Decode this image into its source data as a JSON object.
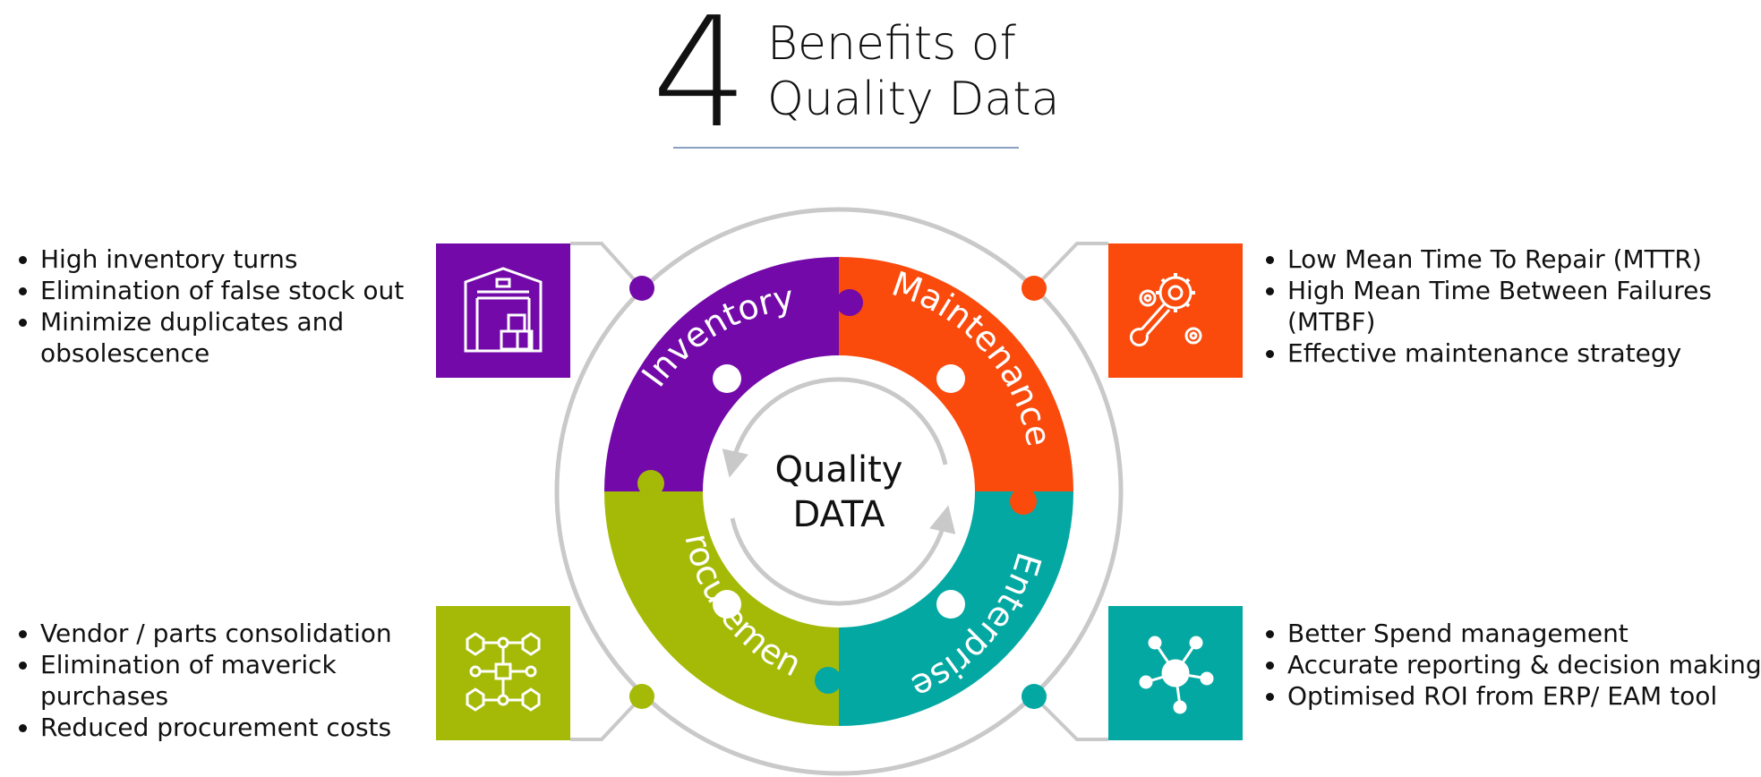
{
  "title": {
    "number": "4",
    "line1": "Benefits of",
    "line2": "Quality Data"
  },
  "center": {
    "line1": "Quality",
    "line2": "DATA"
  },
  "colors": {
    "inventory": "#7209a8",
    "maintenance": "#fa4a0c",
    "enterprise": "#04a8a3",
    "procurement": "#a4ba06",
    "ring": "#c9c9c9",
    "underline": "#8aa2bf"
  },
  "quadrants": [
    {
      "id": "inventory",
      "label": "Inventory",
      "icon": "warehouse-icon",
      "bullets": [
        "High inventory turns",
        "Elimination of false stock out",
        "Minimize duplicates and obsolescence"
      ]
    },
    {
      "id": "maintenance",
      "label": "Maintenance",
      "icon": "gears-wrench-icon",
      "bullets": [
        "Low Mean Time To Repair (MTTR)",
        "High Mean Time Between Failures (MTBF)",
        "Effective maintenance strategy"
      ]
    },
    {
      "id": "procurement",
      "label": "Procurement",
      "icon": "supply-network-icon",
      "bullets": [
        "Vendor / parts consolidation",
        "Elimination of maverick purchases",
        "Reduced procurement costs"
      ]
    },
    {
      "id": "enterprise",
      "label": "Enterprise",
      "icon": "hub-network-icon",
      "bullets": [
        "Better Spend management",
        "Accurate reporting & decision making",
        "Optimised ROI from ERP/ EAM tool"
      ]
    }
  ]
}
